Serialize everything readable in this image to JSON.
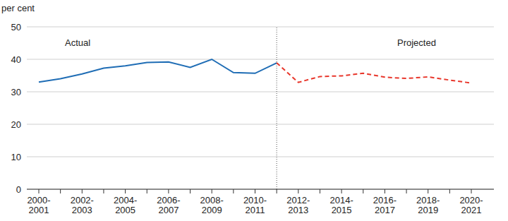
{
  "chart_data": {
    "type": "line",
    "y_label": "per cent",
    "categories": [
      "2000-2001",
      null,
      "2002-2003",
      null,
      "2004-2005",
      null,
      "2006-2007",
      null,
      "2008-2009",
      null,
      "2010-2011",
      null,
      "2012-2013",
      null,
      "2014-2015",
      null,
      "2016-2017",
      null,
      "2018-2019",
      null,
      "2020-2021"
    ],
    "series": [
      {
        "name": "Actual",
        "color": "#1f6db5",
        "line_style": "solid",
        "values": [
          33,
          34,
          35.5,
          37.3,
          38,
          39,
          39.2,
          37.5,
          40,
          35.9,
          35.7,
          38.9,
          null,
          null,
          null,
          null,
          null,
          null,
          null,
          null,
          null
        ]
      },
      {
        "name": "Projected",
        "color": "#e8372c",
        "line_style": "dashed",
        "values": [
          null,
          null,
          null,
          null,
          null,
          null,
          null,
          null,
          null,
          null,
          null,
          38.9,
          32.9,
          34.7,
          34.9,
          35.7,
          34.5,
          34.1,
          34.6,
          33.6,
          32.7
        ]
      }
    ],
    "ylim": [
      0,
      50
    ],
    "yticks": [
      0,
      10,
      20,
      30,
      40,
      50
    ],
    "grid": true
  }
}
